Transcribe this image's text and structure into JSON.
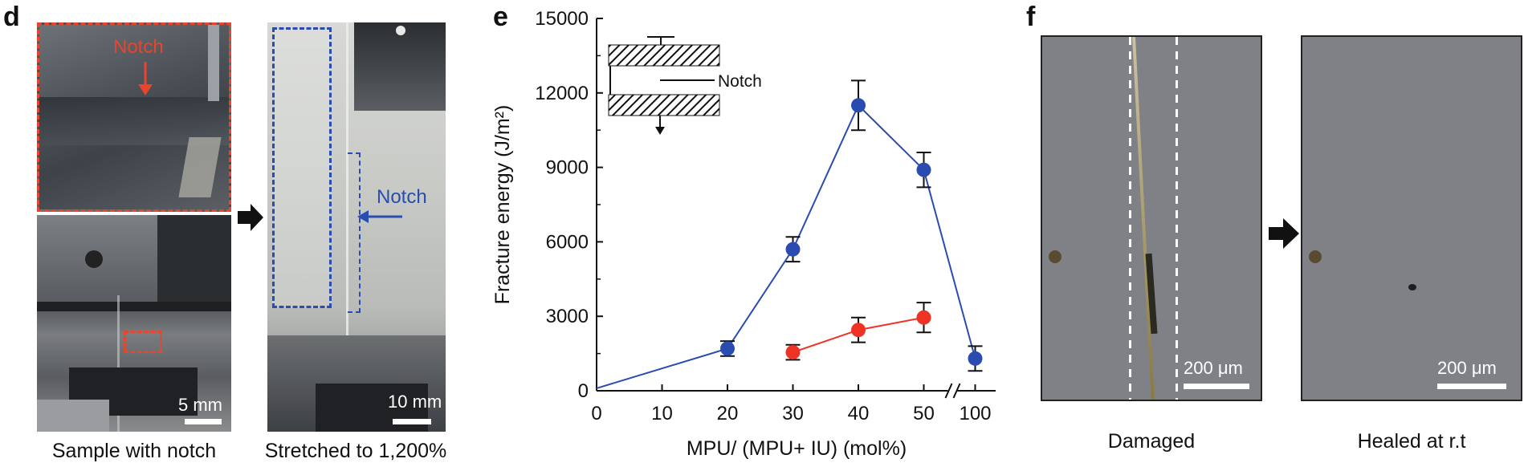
{
  "panel_d": {
    "letter": "d",
    "top_photo_label": "Notch",
    "bottom_scale": "5 mm",
    "stretched_label": "Notch",
    "stretched_scale": "10 mm",
    "caption_left": "Sample with notch",
    "caption_right": "Stretched to 1,200%"
  },
  "panel_e": {
    "letter": "e",
    "inset_label": "Notch"
  },
  "chart_data": {
    "type": "line",
    "title": "",
    "xlabel": "MPU/ (MPU+ IU) (mol%)",
    "ylabel": "Fracture energy (J/m²)",
    "ylim": [
      0,
      15000
    ],
    "yticks": [
      "0",
      "3000",
      "6000",
      "9000",
      "12000",
      "15000"
    ],
    "xticks": [
      "0",
      "10",
      "20",
      "30",
      "40",
      "50",
      "100"
    ],
    "axis_break": "between 50 and 100",
    "colors": {
      "blue": "#2a4bb0",
      "red": "#ee3224"
    },
    "series": [
      {
        "color": "blue",
        "x": [
          0,
          20,
          30,
          40,
          50,
          100
        ],
        "y": [
          100,
          1700,
          5700,
          11500,
          8900,
          1300
        ],
        "err": [
          0,
          300,
          500,
          1000,
          700,
          500
        ],
        "marker": [
          false,
          true,
          true,
          true,
          true,
          true
        ]
      },
      {
        "color": "red",
        "x": [
          30,
          40,
          50
        ],
        "y": [
          1550,
          2450,
          2950
        ],
        "err": [
          300,
          500,
          600
        ],
        "marker": [
          true,
          true,
          true
        ]
      }
    ]
  },
  "panel_f": {
    "letter": "f",
    "scale_left": "200 μm",
    "scale_right": "200 μm",
    "caption_left": "Damaged",
    "caption_right": "Healed at r.t"
  }
}
